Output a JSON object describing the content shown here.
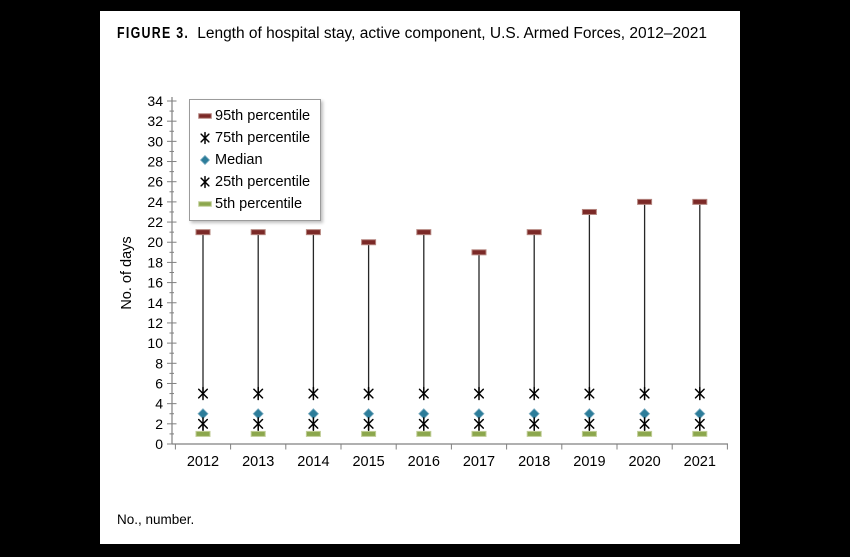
{
  "figure": {
    "label": "FIGURE 3.",
    "caption": "Length of hospital stay, active component, U.S. Armed Forces, 2012–2021",
    "footnote": "No., number."
  },
  "chart_data": {
    "type": "line",
    "title": "Length of hospital stay, active component, U.S. Armed Forces, 2012–2021",
    "xlabel": "",
    "ylabel": "No. of days",
    "ylim": [
      0,
      34
    ],
    "ytick_step": 2,
    "grid": false,
    "legend_position": "top-left",
    "categories": [
      "2012",
      "2013",
      "2014",
      "2015",
      "2016",
      "2017",
      "2018",
      "2019",
      "2020",
      "2021"
    ],
    "series": [
      {
        "name": "95th percentile",
        "marker": "dash",
        "color": "#7B2927",
        "edge": "#B4847E",
        "values": [
          21,
          21,
          21,
          20,
          21,
          19,
          21,
          23,
          24,
          24
        ]
      },
      {
        "name": "75th percentile",
        "marker": "asterisk",
        "color": "#000000",
        "edge": "#000000",
        "values": [
          5,
          5,
          5,
          5,
          5,
          5,
          5,
          5,
          5,
          5
        ]
      },
      {
        "name": "Median",
        "marker": "diamond",
        "color": "#2D7D9A",
        "edge": "#7FAEC2",
        "values": [
          3,
          3,
          3,
          3,
          3,
          3,
          3,
          3,
          3,
          3
        ]
      },
      {
        "name": "25th percentile",
        "marker": "asterisk",
        "color": "#000000",
        "edge": "#000000",
        "values": [
          2,
          2,
          2,
          2,
          2,
          2,
          2,
          2,
          2,
          2
        ]
      },
      {
        "name": "5th percentile",
        "marker": "dash",
        "color": "#8CA74D",
        "edge": "#C0CE96",
        "values": [
          1,
          1,
          1,
          1,
          1,
          1,
          1,
          1,
          1,
          1
        ]
      }
    ],
    "hilo_segments": [
      [
        0,
        1
      ],
      [
        3,
        4
      ]
    ],
    "axis_color": "#808080",
    "hilo_color": "#262626"
  }
}
